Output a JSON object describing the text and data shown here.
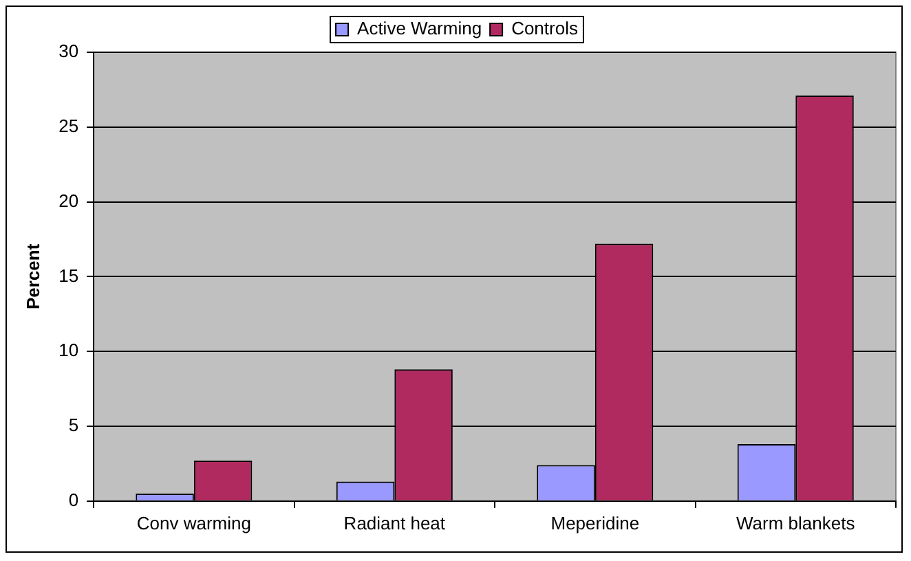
{
  "chart_data": {
    "type": "bar",
    "ylabel": "Percent",
    "categories": [
      "Conv warming",
      "Radiant heat",
      "Meperidine",
      "Warm blankets"
    ],
    "series": [
      {
        "name": "Active Warming",
        "color": "#9999ff",
        "values": [
          0.5,
          1.3,
          2.4,
          3.8
        ]
      },
      {
        "name": "Controls",
        "color": "#b0295f",
        "values": [
          2.7,
          8.8,
          17.2,
          27.1
        ]
      }
    ],
    "ylim": [
      0,
      30
    ],
    "yticks": [
      0,
      5,
      10,
      15,
      20,
      25,
      30
    ],
    "grid": "y",
    "legend": "top"
  }
}
